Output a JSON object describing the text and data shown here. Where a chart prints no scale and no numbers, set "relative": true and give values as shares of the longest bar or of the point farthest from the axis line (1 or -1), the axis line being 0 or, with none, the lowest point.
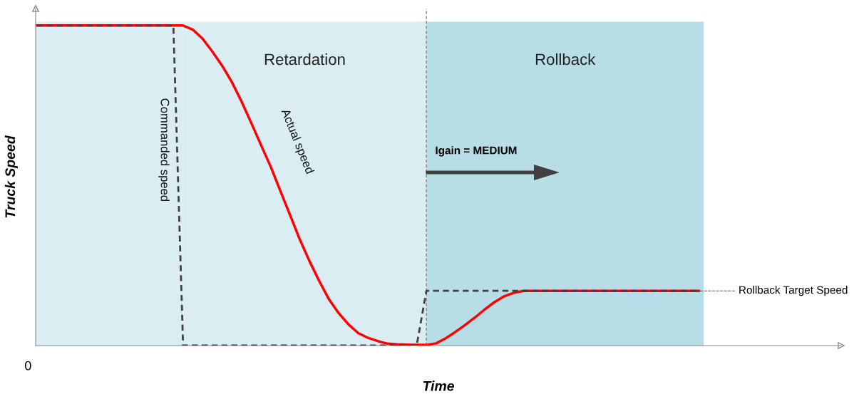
{
  "chart_data": {
    "type": "line",
    "relative": true,
    "xlabel": "Time",
    "ylabel": "Truck Speed",
    "categories": [
      null,
      null,
      null,
      null,
      null,
      null,
      null,
      null,
      null,
      null,
      null,
      null,
      null,
      null,
      null,
      null,
      null,
      null,
      null,
      null,
      null,
      null,
      null,
      null,
      null,
      null,
      null,
      null,
      null,
      null,
      null,
      null,
      null,
      null,
      null,
      null,
      null,
      null,
      null,
      null,
      null,
      null,
      null,
      null,
      null,
      null,
      null,
      null,
      null,
      null,
      null,
      null,
      null,
      null,
      null,
      null,
      null,
      null,
      null,
      null,
      null,
      null,
      null,
      null,
      null,
      null,
      null,
      null,
      null
    ],
    "series": [
      {
        "name": "Commanded speed",
        "color": "#404040",
        "line_style": "dashed",
        "values": [
          1,
          1,
          1,
          1,
          1,
          1,
          1,
          1,
          1,
          1,
          1,
          1,
          1,
          1,
          1,
          0,
          0,
          0,
          0,
          0,
          0,
          0,
          0,
          0,
          0,
          0,
          0,
          0,
          0,
          0,
          0,
          0,
          0,
          0,
          0,
          0,
          0,
          0,
          0,
          0,
          0.171,
          0.171,
          0.171,
          0.171,
          0.171,
          0.171,
          0.171,
          0.171,
          0.171,
          0.171,
          0.171,
          0.171,
          0.171,
          0.171,
          0.171,
          0.171,
          0.171,
          0.171,
          0.171,
          0.171,
          0.171,
          0.171,
          0.171,
          0.171,
          0.171,
          0.171,
          0.171,
          0.171,
          0.171
        ]
      },
      {
        "name": "Actual speed",
        "color": "#ff0000",
        "line_style": "solid",
        "values": [
          1,
          1,
          1,
          1,
          1,
          1,
          1,
          1,
          1,
          1,
          1,
          1,
          1,
          1,
          1,
          1,
          0.987,
          0.959,
          0.919,
          0.875,
          0.824,
          0.763,
          0.696,
          0.627,
          0.559,
          0.483,
          0.407,
          0.331,
          0.263,
          0.201,
          0.144,
          0.101,
          0.066,
          0.039,
          0.024,
          0.014,
          0.006,
          0.004,
          0.003,
          0.002,
          0.002,
          0.007,
          0.023,
          0.043,
          0.065,
          0.088,
          0.113,
          0.136,
          0.154,
          0.165,
          0.171,
          0.171,
          0.171,
          0.171,
          0.171,
          0.171,
          0.171,
          0.171,
          0.171,
          0.171,
          0.171,
          0.171,
          0.171,
          0.171,
          0.171,
          0.171,
          0.171,
          0.171,
          0.171
        ]
      }
    ],
    "annotations": [
      "Retardation",
      "Rollback",
      "Igain = MEDIUM",
      "Rollback Target Speed",
      "0"
    ]
  }
}
